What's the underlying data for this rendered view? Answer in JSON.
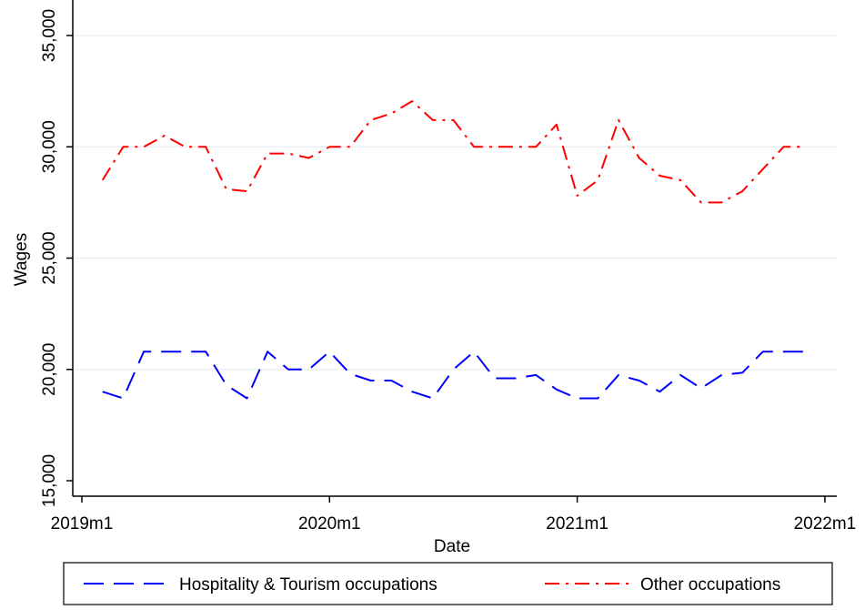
{
  "chart_data": {
    "type": "line",
    "x_unit": "month",
    "xlabel": "Date",
    "ylabel": "Wages",
    "xlim": [
      "2019-01",
      "2022-01"
    ],
    "ylim": [
      15000,
      35000
    ],
    "x_ticks": [
      {
        "value": "2019-01",
        "label": "2019m1"
      },
      {
        "value": "2020-01",
        "label": "2020m1"
      },
      {
        "value": "2021-01",
        "label": "2021m1"
      },
      {
        "value": "2022-01",
        "label": "2022m1"
      }
    ],
    "y_ticks": [
      {
        "value": 15000,
        "label": "15,000"
      },
      {
        "value": 20000,
        "label": "20,000"
      },
      {
        "value": 25000,
        "label": "25,000"
      },
      {
        "value": 30000,
        "label": "30,000"
      },
      {
        "value": 35000,
        "label": "35,000"
      }
    ],
    "grid": "horizontal",
    "legend_position": "bottom",
    "x": [
      "2019-02",
      "2019-03",
      "2019-04",
      "2019-05",
      "2019-06",
      "2019-07",
      "2019-08",
      "2019-09",
      "2019-10",
      "2019-11",
      "2019-12",
      "2020-01",
      "2020-02",
      "2020-03",
      "2020-04",
      "2020-05",
      "2020-06",
      "2020-07",
      "2020-08",
      "2020-09",
      "2020-10",
      "2020-11",
      "2020-12",
      "2021-01",
      "2021-02",
      "2021-03",
      "2021-04",
      "2021-05",
      "2021-06",
      "2021-07",
      "2021-08",
      "2021-09",
      "2021-10",
      "2021-11",
      "2021-12"
    ],
    "series": [
      {
        "name": "Hospitality & Tourism occupations",
        "color": "#0000ff",
        "dash": "long-dash",
        "values": [
          19000,
          18700,
          20800,
          20800,
          20800,
          20800,
          19300,
          18700,
          20800,
          20000,
          20000,
          20800,
          19800,
          19500,
          19500,
          19000,
          18700,
          20000,
          20800,
          19600,
          19600,
          19750,
          19100,
          18700,
          18700,
          19750,
          19500,
          19000,
          19750,
          19150,
          19750,
          19850,
          20800,
          20800,
          20800
        ]
      },
      {
        "name": "Other occupations",
        "color": "#ff0000",
        "dash": "dash-dot",
        "values": [
          28500,
          30000,
          30000,
          30500,
          30000,
          30000,
          28100,
          28000,
          29700,
          29700,
          29500,
          30000,
          30000,
          31200,
          31500,
          32050,
          31200,
          31200,
          30000,
          30000,
          30000,
          30000,
          31000,
          27800,
          28500,
          31200,
          29500,
          28700,
          28500,
          27500,
          27500,
          28000,
          29000,
          30000,
          30000
        ]
      }
    ]
  }
}
